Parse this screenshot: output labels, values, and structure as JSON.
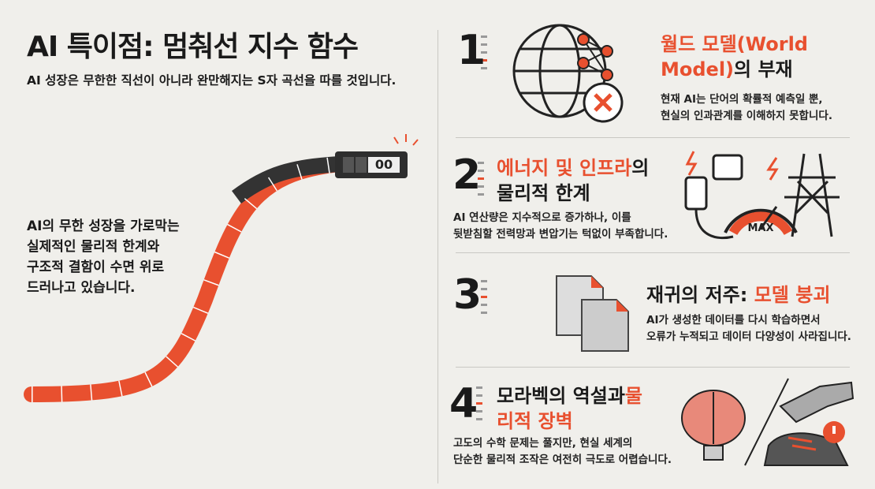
{
  "header": {
    "title": "AI 특이점: 멈춰선 지수 함수",
    "subtitle": "AI 성장은 무한한 직선이 아니라 완만해지는 S자 곡선을 따를 것입니다."
  },
  "left_panel": {
    "counter": "00",
    "body_lines": [
      "AI의 무한 성장을 가로막는",
      "실제적인 물리적 한계와",
      "구조적 결함이 수면 위로",
      "드러나고 있습니다."
    ]
  },
  "accent_color": "#e8502f",
  "items": [
    {
      "number": "1",
      "title_segments": [
        {
          "text": "월드 모델(World Model)",
          "accent": true
        },
        {
          "text": "의 부재",
          "accent": false
        }
      ],
      "body_lines": [
        "현재 AI는 단어의 확률적 예측일 뿐,",
        "현실의 인과관계를 이해하지 못합니다."
      ]
    },
    {
      "number": "2",
      "title_segments": [
        {
          "text": "에너지 및 인프라",
          "accent": true
        },
        {
          "text": "의 물리적 한계",
          "accent": false
        }
      ],
      "body_lines": [
        "AI 연산량은 지수적으로 증가하나, 이를",
        "뒷받침할 전력망과 변압기는 턱없이 부족합니다."
      ],
      "icon_label": "MAX"
    },
    {
      "number": "3",
      "title_segments": [
        {
          "text": "재귀의 저주: ",
          "accent": false
        },
        {
          "text": "모델 붕괴",
          "accent": true
        }
      ],
      "body_lines": [
        "AI가 생성한 데이터를 다시 학습하면서",
        "오류가 누적되고 데이터 다양성이 사라집니다."
      ]
    },
    {
      "number": "4",
      "title_segments": [
        {
          "text": "모라벡의 역설과",
          "accent": false
        },
        {
          "text": "물리적 장벽",
          "accent": true
        }
      ],
      "body_lines": [
        "고도의 수학 문제는 풀지만, 현실 세계의",
        "단순한 물리적 조작은 여전히 극도로 어렵습니다."
      ]
    }
  ]
}
